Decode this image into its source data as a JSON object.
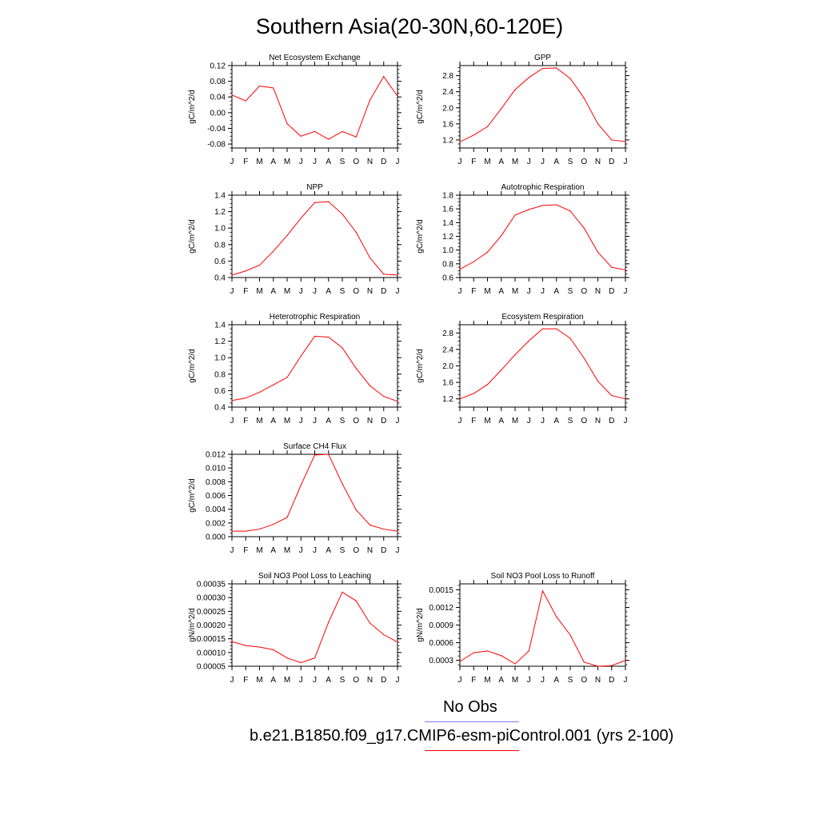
{
  "title": "Southern Asia(20-30N,60-120E)",
  "colors": {
    "model": "#ff0000",
    "obs": "#7b7bff",
    "axis": "#000000"
  },
  "legend": {
    "obs_label": "No Obs",
    "model_label": "b.e21.B1850.f09_g17.CMIP6-esm-piControl.001 (yrs 2-100)"
  },
  "chart_data": [
    {
      "type": "line",
      "title": "Net Ecosystem Exchange",
      "ylabel": "gC/m^2/d",
      "categories": [
        "J",
        "F",
        "M",
        "A",
        "M",
        "J",
        "J",
        "A",
        "S",
        "O",
        "N",
        "D",
        "J"
      ],
      "ylim": [
        -0.09,
        0.12
      ],
      "yticks": [
        "0.12",
        "0.08",
        "0.04",
        "0.00",
        "-0.04",
        "-0.08"
      ],
      "ytick_values": [
        0.12,
        0.08,
        0.04,
        0.0,
        -0.04,
        -0.08
      ],
      "series": [
        {
          "values": [
            0.045,
            0.03,
            0.068,
            0.063,
            -0.028,
            -0.06,
            -0.048,
            -0.068,
            -0.048,
            -0.062,
            0.032,
            0.092,
            0.042
          ]
        }
      ]
    },
    {
      "type": "line",
      "title": "GPP",
      "ylabel": "gC/m^2/d",
      "categories": [
        "J",
        "F",
        "M",
        "A",
        "M",
        "J",
        "J",
        "A",
        "S",
        "O",
        "N",
        "D",
        "J"
      ],
      "ylim": [
        1.0,
        3.05
      ],
      "yticks": [
        "2.8",
        "2.4",
        "2.0",
        "1.6",
        "1.2"
      ],
      "ytick_values": [
        2.8,
        2.4,
        2.0,
        1.6,
        1.2
      ],
      "series": [
        {
          "values": [
            1.15,
            1.32,
            1.53,
            1.98,
            2.45,
            2.75,
            2.98,
            2.99,
            2.73,
            2.24,
            1.6,
            1.2,
            1.16
          ]
        }
      ]
    },
    {
      "type": "line",
      "title": "NPP",
      "ylabel": "gC/m^2/d",
      "categories": [
        "J",
        "F",
        "M",
        "A",
        "M",
        "J",
        "J",
        "A",
        "S",
        "O",
        "N",
        "D",
        "J"
      ],
      "ylim": [
        0.4,
        1.4
      ],
      "yticks": [
        "1.4",
        "1.2",
        "1.0",
        "0.8",
        "0.6",
        "0.4"
      ],
      "ytick_values": [
        1.4,
        1.2,
        1.0,
        0.8,
        0.6,
        0.4
      ],
      "series": [
        {
          "values": [
            0.43,
            0.48,
            0.55,
            0.72,
            0.91,
            1.12,
            1.31,
            1.32,
            1.17,
            0.95,
            0.64,
            0.44,
            0.43
          ]
        }
      ]
    },
    {
      "type": "line",
      "title": "Autotrophic Respiration",
      "ylabel": "gC/m^2/d",
      "categories": [
        "J",
        "F",
        "M",
        "A",
        "M",
        "J",
        "J",
        "A",
        "S",
        "O",
        "N",
        "D",
        "J"
      ],
      "ylim": [
        0.6,
        1.8
      ],
      "yticks": [
        "1.8",
        "1.6",
        "1.4",
        "1.2",
        "1.0",
        "0.8",
        "0.6"
      ],
      "ytick_values": [
        1.8,
        1.6,
        1.4,
        1.2,
        1.0,
        0.8,
        0.6
      ],
      "series": [
        {
          "values": [
            0.72,
            0.83,
            0.97,
            1.21,
            1.51,
            1.59,
            1.65,
            1.66,
            1.57,
            1.32,
            0.97,
            0.75,
            0.71
          ]
        }
      ]
    },
    {
      "type": "line",
      "title": "Heterotrophic Respiration",
      "ylabel": "gC/m^2/d",
      "categories": [
        "J",
        "F",
        "M",
        "A",
        "M",
        "J",
        "J",
        "A",
        "S",
        "O",
        "N",
        "D",
        "J"
      ],
      "ylim": [
        0.4,
        1.4
      ],
      "yticks": [
        "1.4",
        "1.2",
        "1.0",
        "0.8",
        "0.6",
        "0.4"
      ],
      "ytick_values": [
        1.4,
        1.2,
        1.0,
        0.8,
        0.6,
        0.4
      ],
      "series": [
        {
          "values": [
            0.48,
            0.51,
            0.58,
            0.67,
            0.76,
            1.02,
            1.26,
            1.25,
            1.12,
            0.87,
            0.66,
            0.53,
            0.47
          ]
        }
      ]
    },
    {
      "type": "line",
      "title": "Ecosystem Respiration",
      "ylabel": "gC/m^2/d",
      "categories": [
        "J",
        "F",
        "M",
        "A",
        "M",
        "J",
        "J",
        "A",
        "S",
        "O",
        "N",
        "D",
        "J"
      ],
      "ylim": [
        1.0,
        3.0
      ],
      "yticks": [
        "2.8",
        "2.4",
        "2.0",
        "1.6",
        "1.2"
      ],
      "ytick_values": [
        2.8,
        2.4,
        2.0,
        1.6,
        1.2
      ],
      "series": [
        {
          "values": [
            1.2,
            1.33,
            1.55,
            1.9,
            2.27,
            2.61,
            2.9,
            2.9,
            2.67,
            2.19,
            1.63,
            1.28,
            1.2
          ]
        }
      ]
    },
    {
      "type": "line",
      "title": "Surface CH4 Flux",
      "ylabel": "gC/m^2/d",
      "categories": [
        "J",
        "F",
        "M",
        "A",
        "M",
        "J",
        "J",
        "A",
        "S",
        "O",
        "N",
        "D",
        "J"
      ],
      "ylim": [
        0.0,
        0.012
      ],
      "yticks": [
        "0.012",
        "0.010",
        "0.008",
        "0.006",
        "0.004",
        "0.002",
        "0.000"
      ],
      "ytick_values": [
        0.012,
        0.01,
        0.008,
        0.006,
        0.004,
        0.002,
        0.0
      ],
      "series": [
        {
          "values": [
            0.0008,
            0.0008,
            0.0011,
            0.0018,
            0.0028,
            0.0075,
            0.0119,
            0.012,
            0.0077,
            0.0039,
            0.0017,
            0.0011,
            0.0008
          ]
        }
      ]
    },
    {
      "type": "line",
      "title": "Soil NO3 Pool Loss to Leaching",
      "ylabel": "gN/m^2/d",
      "categories": [
        "J",
        "F",
        "M",
        "A",
        "M",
        "J",
        "J",
        "A",
        "S",
        "O",
        "N",
        "D",
        "J"
      ],
      "ylim": [
        5e-05,
        0.00035
      ],
      "yticks": [
        "0.00035",
        "0.00030",
        "0.00025",
        "0.00020",
        "0.00015",
        "0.00010",
        "0.00005"
      ],
      "ytick_values": [
        0.00035,
        0.0003,
        0.00025,
        0.0002,
        0.00015,
        0.0001,
        5e-05
      ],
      "series": [
        {
          "values": [
            0.00014,
            0.000125,
            0.00012,
            0.00011,
            8e-05,
            6.3e-05,
            8e-05,
            0.00021,
            0.00032,
            0.000288,
            0.000207,
            0.000165,
            0.000138
          ]
        }
      ]
    },
    {
      "type": "line",
      "title": "Soil NO3 Pool Loss to Runoff",
      "ylabel": "gN/m^2/d",
      "categories": [
        "J",
        "F",
        "M",
        "A",
        "M",
        "J",
        "J",
        "A",
        "S",
        "O",
        "N",
        "D",
        "J"
      ],
      "ylim": [
        0.0002,
        0.0016
      ],
      "yticks": [
        "0.0015",
        "0.0012",
        "0.0009",
        "0.0006",
        "0.0003"
      ],
      "ytick_values": [
        0.0015,
        0.0012,
        0.0009,
        0.0006,
        0.0003
      ],
      "series": [
        {
          "values": [
            0.00028,
            0.00043,
            0.00046,
            0.00038,
            0.00024,
            0.00046,
            0.00148,
            0.00104,
            0.00073,
            0.00027,
            0.0002,
            0.00021,
            0.0003
          ]
        }
      ]
    }
  ]
}
